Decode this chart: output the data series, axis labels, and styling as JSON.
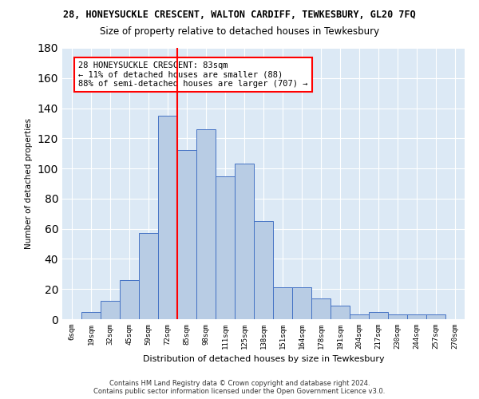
{
  "title_line1": "28, HONEYSUCKLE CRESCENT, WALTON CARDIFF, TEWKESBURY, GL20 7FQ",
  "title_line2": "Size of property relative to detached houses in Tewkesbury",
  "xlabel": "Distribution of detached houses by size in Tewkesbury",
  "ylabel": "Number of detached properties",
  "footnote": "Contains HM Land Registry data © Crown copyright and database right 2024.\nContains public sector information licensed under the Open Government Licence v3.0.",
  "bin_labels": [
    "6sqm",
    "19sqm",
    "32sqm",
    "45sqm",
    "59sqm",
    "72sqm",
    "85sqm",
    "98sqm",
    "111sqm",
    "125sqm",
    "138sqm",
    "151sqm",
    "164sqm",
    "178sqm",
    "191sqm",
    "204sqm",
    "217sqm",
    "230sqm",
    "244sqm",
    "257sqm",
    "270sqm"
  ],
  "bar_heights": [
    0,
    5,
    12,
    26,
    57,
    135,
    112,
    126,
    95,
    103,
    65,
    21,
    21,
    14,
    9,
    3,
    5,
    3,
    3,
    3,
    0
  ],
  "bar_color": "#b8cce4",
  "bar_edge_color": "#4472c4",
  "vline_color": "red",
  "annotation_text": "28 HONEYSUCKLE CRESCENT: 83sqm\n← 11% of detached houses are smaller (88)\n88% of semi-detached houses are larger (707) →",
  "ylim": [
    0,
    180
  ],
  "yticks": [
    0,
    20,
    40,
    60,
    80,
    100,
    120,
    140,
    160,
    180
  ],
  "plot_bg_color": "#dce9f5",
  "grid_color": "white"
}
